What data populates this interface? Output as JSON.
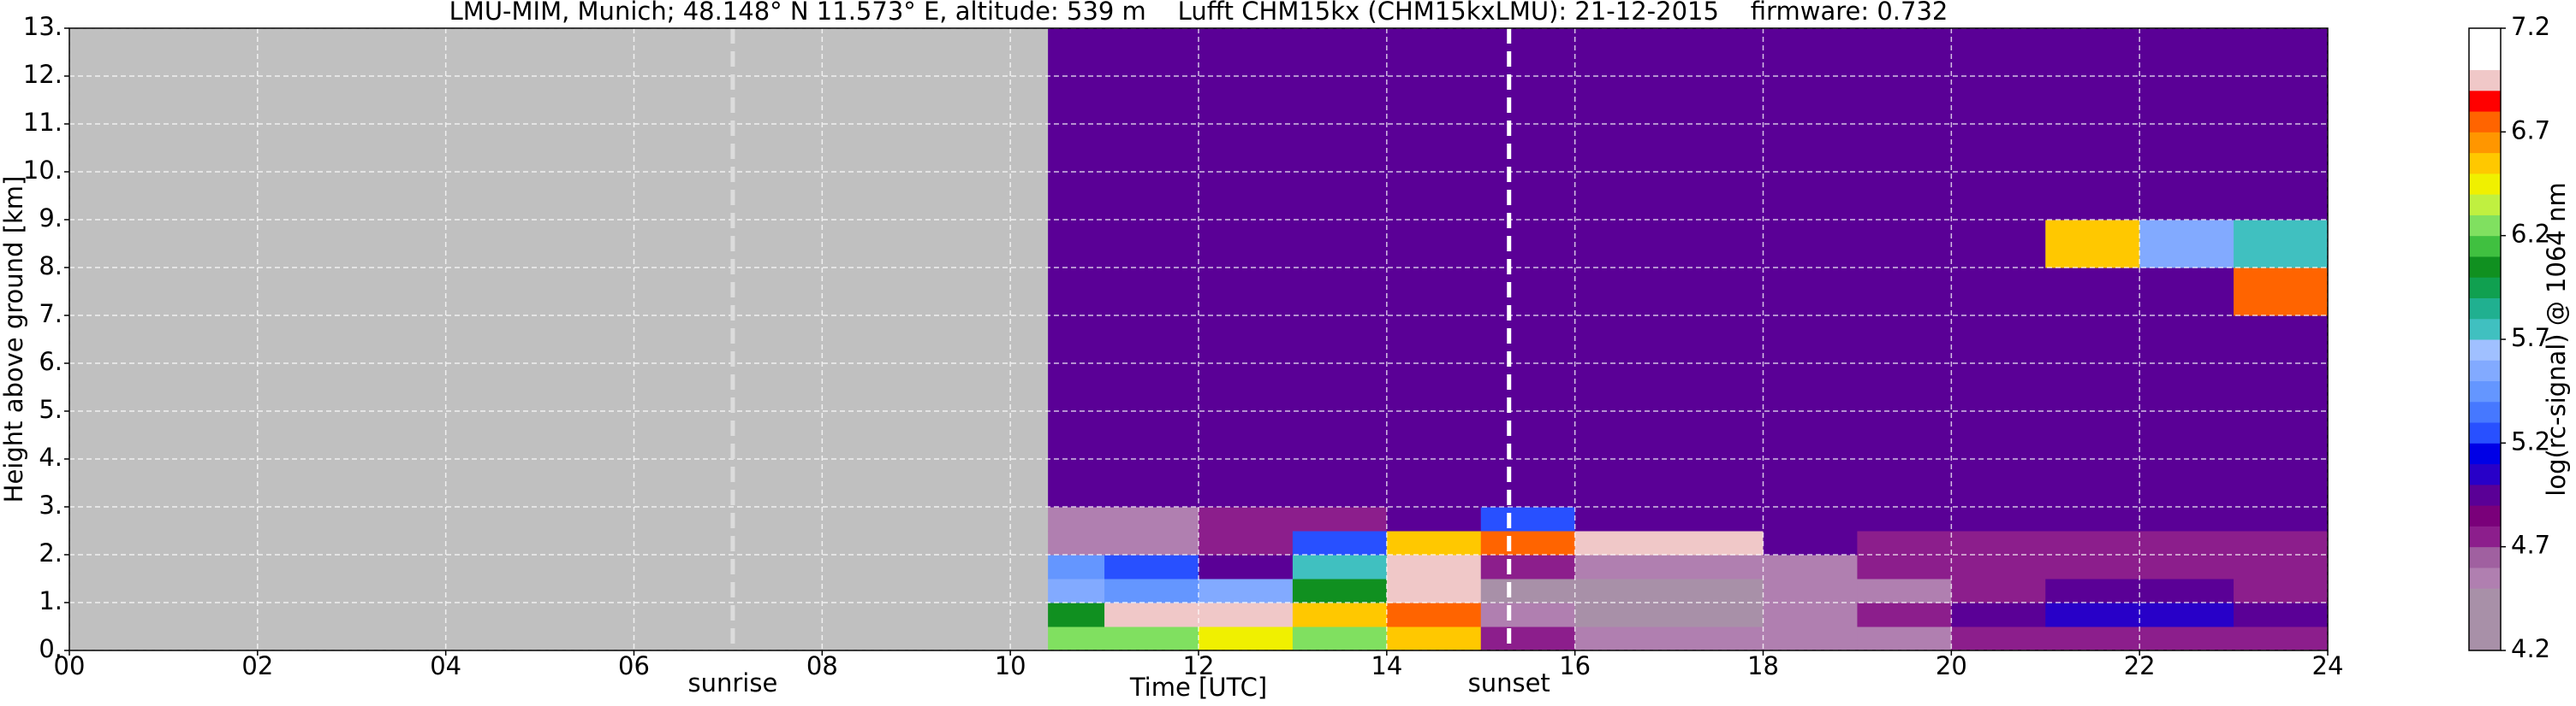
{
  "chart_data": {
    "type": "heatmap",
    "title": "LMU-MIM, Munich; 48.148° N 11.573° E, altitude: 539 m    Lufft CHM15kx (CHM15kxLMU): 21-12-2015    firmware: 0.732",
    "xlabel": "Time [UTC]",
    "ylabel": "Height above ground [km]",
    "colorbar_label": "log(rc-signal) @ 1064 nm",
    "xlim": [
      0,
      24
    ],
    "xticks": [
      {
        "value": 0,
        "label": "00"
      },
      {
        "value": 2,
        "label": "02"
      },
      {
        "value": 4,
        "label": "04"
      },
      {
        "value": 6,
        "label": "06"
      },
      {
        "value": 8,
        "label": "08"
      },
      {
        "value": 10,
        "label": "10"
      },
      12,
      14,
      16,
      18,
      20,
      22,
      24
    ],
    "ylim": [
      0,
      13
    ],
    "yticks": [
      {
        "value": 0,
        "label": "0."
      },
      {
        "value": 1,
        "label": "1."
      },
      {
        "value": 2,
        "label": "2."
      },
      {
        "value": 3,
        "label": "3."
      },
      {
        "value": 4,
        "label": "4."
      },
      {
        "value": 5,
        "label": "5."
      },
      {
        "value": 6,
        "label": "6."
      },
      {
        "value": 7,
        "label": "7."
      },
      {
        "value": 8,
        "label": "8."
      },
      {
        "value": 9,
        "label": "9."
      },
      {
        "value": 10,
        "label": "10."
      },
      {
        "value": 11,
        "label": "11."
      },
      {
        "value": 12,
        "label": "12."
      },
      {
        "value": 13,
        "label": "13."
      }
    ],
    "clim": [
      4.2,
      7.2
    ],
    "cticks": [
      4.2,
      4.7,
      5.2,
      5.7,
      6.2,
      6.7,
      7.2
    ],
    "colormap": [
      "#a890a8",
      "#a890a8",
      "#a890a8",
      "#b07fb0",
      "#a060a0",
      "#8c1e8c",
      "#7a007a",
      "#5a0096",
      "#2800c8",
      "#0000e6",
      "#2850ff",
      "#4678ff",
      "#6496ff",
      "#82aaff",
      "#a0c0ff",
      "#40c0c0",
      "#20b090",
      "#10a050",
      "#109020",
      "#40c040",
      "#80e060",
      "#c0f040",
      "#f0f000",
      "#ffc800",
      "#ff9600",
      "#ff6400",
      "#ff0000",
      "#f0c8c8",
      "#ffffff",
      "#ffffff"
    ],
    "nodata_color": "#c0c0c0",
    "grid": true,
    "xbins": [
      10.4,
      11,
      12,
      13,
      14,
      15,
      16,
      17,
      18,
      19,
      20,
      21,
      22,
      23,
      24
    ],
    "ybins": [
      0,
      0.5,
      1,
      1.5,
      2,
      2.5,
      3,
      4,
      5,
      6,
      7,
      8,
      9,
      10,
      11,
      12,
      13
    ],
    "z": [
      [
        6.2,
        6.3,
        6.4,
        6.3,
        6.5,
        4.7,
        4.6,
        4.6,
        4.6,
        4.6,
        4.7,
        4.7,
        4.7,
        4.8
      ],
      [
        6.0,
        6.9,
        6.9,
        6.6,
        6.7,
        4.6,
        4.5,
        4.5,
        4.6,
        4.7,
        4.9,
        5.1,
        5.1,
        4.9
      ],
      [
        5.6,
        5.5,
        5.6,
        6.0,
        6.9,
        4.5,
        4.5,
        4.5,
        4.6,
        4.6,
        4.8,
        5.0,
        5.0,
        4.8
      ],
      [
        5.4,
        5.2,
        5.0,
        5.7,
        6.9,
        4.7,
        4.6,
        4.6,
        4.6,
        4.7,
        4.8,
        4.8,
        4.8,
        4.8
      ],
      [
        4.6,
        4.6,
        4.8,
        5.2,
        6.6,
        6.8,
        6.9,
        6.9,
        4.9,
        4.8,
        4.8,
        4.8,
        4.8,
        4.8
      ],
      [
        4.6,
        4.6,
        4.7,
        4.8,
        4.9,
        5.2,
        5.0,
        4.9,
        4.9,
        4.9,
        4.9,
        4.9,
        4.9,
        4.9
      ],
      [
        5.0,
        5.0,
        5.0,
        5.0,
        5.0,
        5.0,
        5.0,
        5.0,
        5.0,
        5.0,
        5.0,
        5.0,
        5.0,
        5.0
      ],
      [
        5.0,
        5.0,
        5.0,
        5.0,
        5.0,
        5.0,
        5.0,
        5.0,
        5.0,
        5.0,
        5.0,
        5.0,
        5.0,
        5.0
      ],
      [
        5.0,
        5.0,
        5.0,
        5.0,
        5.0,
        5.0,
        5.0,
        5.0,
        5.0,
        5.0,
        5.0,
        5.0,
        5.0,
        5.0
      ],
      [
        5.0,
        5.0,
        5.0,
        5.0,
        5.0,
        5.0,
        5.0,
        5.0,
        5.0,
        5.0,
        5.0,
        5.0,
        5.0,
        5.0
      ],
      [
        5.0,
        5.0,
        5.0,
        5.0,
        5.0,
        5.0,
        5.0,
        5.0,
        5.0,
        5.0,
        5.0,
        5.0,
        5.0,
        6.8
      ],
      [
        5.0,
        5.0,
        5.0,
        5.0,
        5.0,
        5.0,
        5.0,
        5.0,
        5.0,
        5.0,
        5.0,
        6.5,
        5.6,
        5.8
      ],
      [
        5.0,
        5.0,
        5.0,
        5.0,
        5.0,
        5.0,
        5.0,
        5.0,
        5.0,
        5.0,
        5.0,
        5.0,
        5.0,
        5.0
      ],
      [
        5.0,
        5.0,
        5.0,
        5.0,
        5.0,
        5.0,
        5.0,
        5.0,
        5.0,
        5.0,
        5.0,
        5.0,
        5.0,
        5.0
      ],
      [
        5.0,
        5.0,
        5.0,
        5.0,
        5.0,
        5.0,
        5.0,
        5.0,
        5.0,
        5.0,
        5.0,
        5.0,
        5.0,
        5.0
      ],
      [
        5.0,
        5.0,
        5.0,
        5.0,
        5.0,
        5.0,
        5.0,
        5.0,
        5.0,
        5.0,
        5.0,
        5.0,
        5.0,
        5.0
      ]
    ],
    "vlines": [
      {
        "x": 7.05,
        "label": "sunrise",
        "color": "#dcdcdc"
      },
      {
        "x": 15.3,
        "label": "sunset",
        "color": "#ffffff"
      }
    ]
  }
}
